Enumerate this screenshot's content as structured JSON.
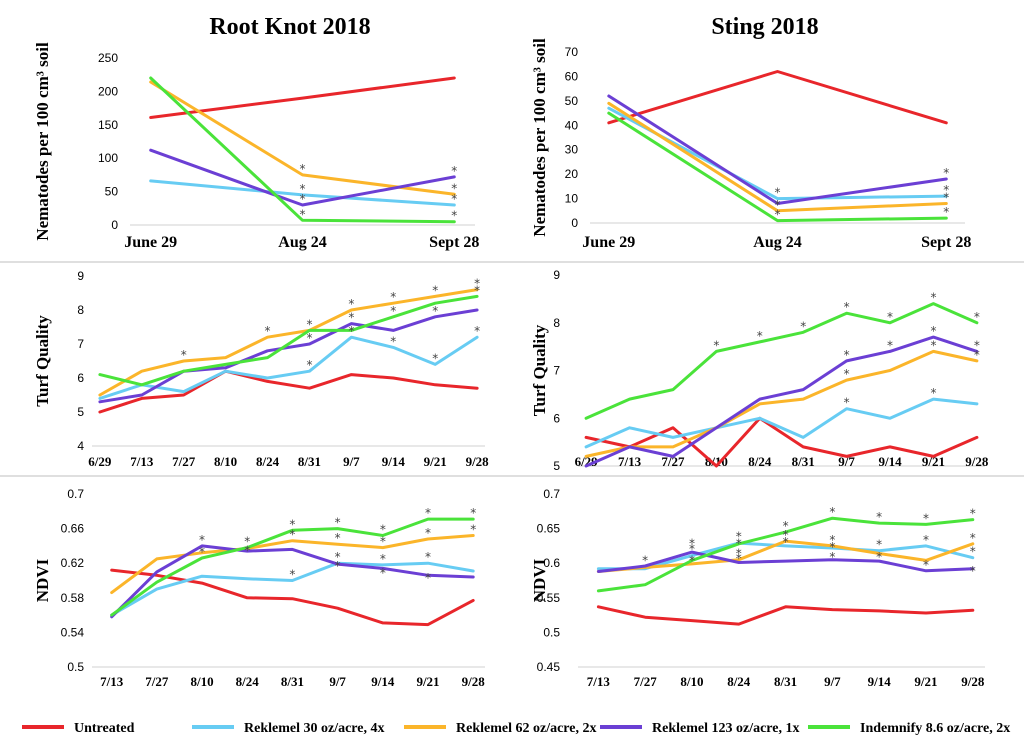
{
  "colors": {
    "Untreated": "#e8262b",
    "Reklemel 30 oz/acre, 4x": "#67ccf3",
    "Reklemel 62 oz/acre, 2x": "#fbb52a",
    "Reklemel 123 oz/acre, 1x": "#6b3fd4",
    "Indemnify 8.6 oz/acre, 2x": "#4ae33a"
  },
  "legend": [
    {
      "label": "Untreated"
    },
    {
      "label": "Reklemel 30 oz/acre, 4x"
    },
    {
      "label": "Reklemel 62 oz/acre, 2x"
    },
    {
      "label": "Reklemel 123 oz/acre, 1x"
    },
    {
      "label": "Indemnify 8.6 oz/acre, 2x"
    }
  ],
  "chart_data": [
    {
      "id": "rk_nema",
      "type": "line",
      "title": "Root Knot 2018",
      "ylabel": "Nematodes per 100 cm³ soil",
      "xlabel": "",
      "categories": [
        "June 29",
        "Aug 24",
        "Sept 28"
      ],
      "ylim": [
        0,
        250
      ],
      "yticks": [
        "0",
        "50",
        "100",
        "150",
        "200",
        "250"
      ],
      "yticksv": [
        0,
        50,
        100,
        150,
        200,
        250
      ],
      "grid": false,
      "series": [
        {
          "name": "Untreated",
          "values": [
            161,
            190,
            220
          ]
        },
        {
          "name": "Reklemel 30 oz/acre, 4x",
          "values": [
            66,
            45,
            30
          ]
        },
        {
          "name": "Reklemel 62 oz/acre, 2x",
          "values": [
            214,
            75,
            46
          ]
        },
        {
          "name": "Reklemel 123 oz/acre, 1x",
          "values": [
            112,
            30,
            72
          ]
        },
        {
          "name": "Indemnify 8.6 oz/acre, 2x",
          "values": [
            220,
            7,
            5
          ]
        }
      ],
      "annotations": [
        {
          "text": "*",
          "cat": 1,
          "y": 75
        },
        {
          "text": "*",
          "cat": 1,
          "y": 45
        },
        {
          "text": "*",
          "cat": 1,
          "y": 30
        },
        {
          "text": "*",
          "cat": 1,
          "y": 7
        },
        {
          "text": "*",
          "cat": 2,
          "y": 72
        },
        {
          "text": "*",
          "cat": 2,
          "y": 46
        },
        {
          "text": "*",
          "cat": 2,
          "y": 30
        },
        {
          "text": "*",
          "cat": 2,
          "y": 5
        }
      ]
    },
    {
      "id": "st_nema",
      "type": "line",
      "title": "Sting 2018",
      "ylabel": "Nematodes per 100 cm³ soil",
      "xlabel": "",
      "categories": [
        "June 29",
        "Aug 24",
        "Sept 28"
      ],
      "ylim": [
        0,
        70
      ],
      "yticks": [
        "0",
        "10",
        "20",
        "30",
        "40",
        "50",
        "60",
        "70"
      ],
      "yticksv": [
        0,
        10,
        20,
        30,
        40,
        50,
        60,
        70
      ],
      "grid": false,
      "series": [
        {
          "name": "Untreated",
          "values": [
            41,
            62,
            41
          ]
        },
        {
          "name": "Reklemel 30 oz/acre, 4x",
          "values": [
            47,
            10,
            11
          ]
        },
        {
          "name": "Reklemel 62 oz/acre, 2x",
          "values": [
            49,
            5,
            8
          ]
        },
        {
          "name": "Reklemel 123 oz/acre, 1x",
          "values": [
            52,
            8,
            18
          ]
        },
        {
          "name": "Indemnify 8.6 oz/acre, 2x",
          "values": [
            45,
            1,
            2
          ]
        }
      ],
      "annotations": [
        {
          "text": "*",
          "cat": 1,
          "y": 10
        },
        {
          "text": "*",
          "cat": 1,
          "y": 5
        },
        {
          "text": "*",
          "cat": 1,
          "y": 1
        },
        {
          "text": "*",
          "cat": 2,
          "y": 18
        },
        {
          "text": "*",
          "cat": 2,
          "y": 11
        },
        {
          "text": "*",
          "cat": 2,
          "y": 8
        },
        {
          "text": "*",
          "cat": 2,
          "y": 2
        }
      ]
    },
    {
      "id": "rk_turf",
      "type": "line",
      "title": "",
      "ylabel": "Turf Quality",
      "xlabel": "",
      "categories": [
        "6/29",
        "7/13",
        "7/27",
        "8/10",
        "8/24",
        "8/31",
        "9/7",
        "9/14",
        "9/21",
        "9/28"
      ],
      "ylim": [
        4,
        9
      ],
      "yticks": [
        "4",
        "5",
        "6",
        "7",
        "8",
        "9"
      ],
      "yticksv": [
        4,
        5,
        6,
        7,
        8,
        9
      ],
      "grid": false,
      "series": [
        {
          "name": "Untreated",
          "values": [
            5.0,
            5.4,
            5.5,
            6.2,
            5.9,
            5.7,
            6.1,
            6.0,
            5.8,
            5.7
          ]
        },
        {
          "name": "Reklemel 30 oz/acre, 4x",
          "values": [
            5.4,
            5.8,
            5.6,
            6.2,
            6.0,
            6.2,
            7.2,
            6.9,
            6.4,
            7.2
          ]
        },
        {
          "name": "Reklemel 62 oz/acre, 2x",
          "values": [
            5.5,
            6.2,
            6.5,
            6.6,
            7.2,
            7.4,
            8.0,
            8.2,
            8.4,
            8.6
          ]
        },
        {
          "name": "Reklemel 123 oz/acre, 1x",
          "values": [
            5.3,
            5.5,
            6.2,
            6.3,
            6.8,
            7.0,
            7.6,
            7.4,
            7.8,
            8.0
          ]
        },
        {
          "name": "Indemnify 8.6 oz/acre, 2x",
          "values": [
            6.1,
            5.8,
            6.2,
            6.4,
            6.6,
            7.4,
            7.4,
            7.8,
            8.2,
            8.4
          ]
        }
      ],
      "annotations": [
        {
          "text": "*",
          "cat": 2,
          "y": 6.5
        },
        {
          "text": "*",
          "cat": 4,
          "y": 7.2
        },
        {
          "text": "*",
          "cat": 5,
          "y": 7.4
        },
        {
          "text": "*",
          "cat": 5,
          "y": 7.0
        },
        {
          "text": "*",
          "cat": 5,
          "y": 6.2
        },
        {
          "text": "*",
          "cat": 6,
          "y": 8.0
        },
        {
          "text": "*",
          "cat": 6,
          "y": 7.6
        },
        {
          "text": "*",
          "cat": 6,
          "y": 7.2
        },
        {
          "text": "*",
          "cat": 7,
          "y": 8.2
        },
        {
          "text": "*",
          "cat": 7,
          "y": 7.8
        },
        {
          "text": "*",
          "cat": 7,
          "y": 6.9
        },
        {
          "text": "*",
          "cat": 8,
          "y": 8.4
        },
        {
          "text": "*",
          "cat": 8,
          "y": 7.8
        },
        {
          "text": "*",
          "cat": 8,
          "y": 6.4
        },
        {
          "text": "*",
          "cat": 9,
          "y": 8.6
        },
        {
          "text": "*",
          "cat": 9,
          "y": 8.4
        },
        {
          "text": "*",
          "cat": 9,
          "y": 7.2
        }
      ]
    },
    {
      "id": "st_turf",
      "type": "line",
      "title": "",
      "ylabel": "Turf Quality",
      "xlabel": "",
      "categories": [
        "6/29",
        "7/13",
        "7/27",
        "8/10",
        "8/24",
        "8/31",
        "9/7",
        "9/14",
        "9/21",
        "9/28"
      ],
      "ylim": [
        5,
        9
      ],
      "yticks": [
        "5",
        "6",
        "7",
        "8",
        "9"
      ],
      "yticksv": [
        5,
        6,
        7,
        8,
        9
      ],
      "grid": false,
      "series": [
        {
          "name": "Untreated",
          "values": [
            5.6,
            5.4,
            5.8,
            5.0,
            6.0,
            5.4,
            5.2,
            5.4,
            5.2,
            5.6
          ]
        },
        {
          "name": "Reklemel 30 oz/acre, 4x",
          "values": [
            5.4,
            5.8,
            5.6,
            5.8,
            6.0,
            5.6,
            6.2,
            6.0,
            6.4,
            6.3
          ]
        },
        {
          "name": "Reklemel 62 oz/acre, 2x",
          "values": [
            5.2,
            5.4,
            5.4,
            5.8,
            6.3,
            6.4,
            6.8,
            7.0,
            7.4,
            7.2
          ]
        },
        {
          "name": "Reklemel 123 oz/acre, 1x",
          "values": [
            5.0,
            5.4,
            5.2,
            5.8,
            6.4,
            6.6,
            7.2,
            7.4,
            7.7,
            7.4
          ]
        },
        {
          "name": "Indemnify 8.6 oz/acre, 2x",
          "values": [
            6.0,
            6.4,
            6.6,
            7.4,
            7.6,
            7.8,
            8.2,
            8.0,
            8.4,
            8.0
          ]
        }
      ],
      "annotations": [
        {
          "text": "*",
          "cat": 3,
          "y": 7.4
        },
        {
          "text": "*",
          "cat": 4,
          "y": 7.6
        },
        {
          "text": "*",
          "cat": 5,
          "y": 7.8
        },
        {
          "text": "*",
          "cat": 6,
          "y": 8.2
        },
        {
          "text": "*",
          "cat": 6,
          "y": 7.2
        },
        {
          "text": "*",
          "cat": 6,
          "y": 6.8
        },
        {
          "text": "*",
          "cat": 6,
          "y": 6.2
        },
        {
          "text": "*",
          "cat": 7,
          "y": 8.0
        },
        {
          "text": "*",
          "cat": 7,
          "y": 7.4
        },
        {
          "text": "*",
          "cat": 8,
          "y": 8.4
        },
        {
          "text": "*",
          "cat": 8,
          "y": 7.7
        },
        {
          "text": "*",
          "cat": 8,
          "y": 7.4
        },
        {
          "text": "*",
          "cat": 8,
          "y": 6.4
        },
        {
          "text": "*",
          "cat": 9,
          "y": 8.0
        },
        {
          "text": "*",
          "cat": 9,
          "y": 7.4
        },
        {
          "text": "*",
          "cat": 9,
          "y": 7.2
        }
      ]
    },
    {
      "id": "rk_ndvi",
      "type": "line",
      "title": "",
      "ylabel": "NDVI",
      "xlabel": "",
      "categories": [
        "7/13",
        "7/27",
        "8/10",
        "8/24",
        "8/31",
        "9/7",
        "9/14",
        "9/21",
        "9/28"
      ],
      "ylim": [
        0.5,
        0.7
      ],
      "yticks": [
        "0.5",
        "0.54",
        "0.58",
        "0.62",
        "0.66",
        "0.7"
      ],
      "yticksv": [
        0.5,
        0.54,
        0.58,
        0.62,
        0.66,
        0.7
      ],
      "grid": false,
      "series": [
        {
          "name": "Untreated",
          "values": [
            0.612,
            0.606,
            0.597,
            0.58,
            0.579,
            0.568,
            0.551,
            0.549,
            0.577
          ]
        },
        {
          "name": "Reklemel 30 oz/acre, 4x",
          "values": [
            0.56,
            0.59,
            0.605,
            0.602,
            0.6,
            0.62,
            0.618,
            0.62,
            0.611
          ]
        },
        {
          "name": "Reklemel 62 oz/acre, 2x",
          "values": [
            0.586,
            0.625,
            0.632,
            0.637,
            0.646,
            0.642,
            0.638,
            0.648,
            0.652
          ]
        },
        {
          "name": "Reklemel 123 oz/acre, 1x",
          "values": [
            0.558,
            0.61,
            0.64,
            0.634,
            0.636,
            0.619,
            0.614,
            0.606,
            0.604
          ]
        },
        {
          "name": "Indemnify 8.6 oz/acre, 2x",
          "values": [
            0.56,
            0.598,
            0.626,
            0.638,
            0.658,
            0.66,
            0.652,
            0.671,
            0.671
          ]
        }
      ],
      "annotations": [
        {
          "text": "*",
          "cat": 2,
          "y": 0.64
        },
        {
          "text": "*",
          "cat": 2,
          "y": 0.626
        },
        {
          "text": "*",
          "cat": 3,
          "y": 0.638
        },
        {
          "text": "*",
          "cat": 3,
          "y": 0.628
        },
        {
          "text": "*",
          "cat": 4,
          "y": 0.658
        },
        {
          "text": "*",
          "cat": 4,
          "y": 0.646
        },
        {
          "text": "*",
          "cat": 4,
          "y": 0.6
        },
        {
          "text": "*",
          "cat": 5,
          "y": 0.66
        },
        {
          "text": "*",
          "cat": 5,
          "y": 0.642
        },
        {
          "text": "*",
          "cat": 5,
          "y": 0.62
        },
        {
          "text": "*",
          "cat": 5,
          "y": 0.61
        },
        {
          "text": "*",
          "cat": 6,
          "y": 0.652
        },
        {
          "text": "*",
          "cat": 6,
          "y": 0.638
        },
        {
          "text": "*",
          "cat": 6,
          "y": 0.618
        },
        {
          "text": "*",
          "cat": 6,
          "y": 0.602
        },
        {
          "text": "*",
          "cat": 7,
          "y": 0.671
        },
        {
          "text": "*",
          "cat": 7,
          "y": 0.648
        },
        {
          "text": "*",
          "cat": 7,
          "y": 0.62
        },
        {
          "text": "*",
          "cat": 7,
          "y": 0.596
        },
        {
          "text": "*",
          "cat": 8,
          "y": 0.671
        },
        {
          "text": "*",
          "cat": 8,
          "y": 0.652
        }
      ]
    },
    {
      "id": "st_ndvi",
      "type": "line",
      "title": "",
      "ylabel": "NDVI",
      "xlabel": "",
      "categories": [
        "7/13",
        "7/27",
        "8/10",
        "8/24",
        "8/31",
        "9/7",
        "9/14",
        "9/21",
        "9/28"
      ],
      "ylim": [
        0.45,
        0.7
      ],
      "yticks": [
        "0.45",
        "0.5",
        "0.55",
        "0.6",
        "0.65",
        "0.7"
      ],
      "yticksv": [
        0.45,
        0.5,
        0.55,
        0.6,
        0.65,
        0.7
      ],
      "grid": false,
      "series": [
        {
          "name": "Untreated",
          "values": [
            0.537,
            0.522,
            0.517,
            0.512,
            0.537,
            0.533,
            0.531,
            0.528,
            0.532
          ]
        },
        {
          "name": "Reklemel 30 oz/acre, 4x",
          "values": [
            0.592,
            0.592,
            0.611,
            0.629,
            0.625,
            0.622,
            0.618,
            0.625,
            0.608
          ]
        },
        {
          "name": "Reklemel 62 oz/acre, 2x",
          "values": [
            0.588,
            0.594,
            0.599,
            0.605,
            0.632,
            0.625,
            0.614,
            0.604,
            0.628
          ]
        },
        {
          "name": "Reklemel 123 oz/acre, 1x",
          "values": [
            0.588,
            0.596,
            0.616,
            0.601,
            0.603,
            0.605,
            0.603,
            0.589,
            0.592
          ]
        },
        {
          "name": "Indemnify 8.6 oz/acre, 2x",
          "values": [
            0.56,
            0.569,
            0.604,
            0.628,
            0.645,
            0.665,
            0.658,
            0.656,
            0.663
          ]
        }
      ],
      "annotations": [
        {
          "text": "*",
          "cat": 1,
          "y": 0.595
        },
        {
          "text": "*",
          "cat": 2,
          "y": 0.62
        },
        {
          "text": "*",
          "cat": 2,
          "y": 0.612
        },
        {
          "text": "*",
          "cat": 2,
          "y": 0.595
        },
        {
          "text": "*",
          "cat": 3,
          "y": 0.63
        },
        {
          "text": "*",
          "cat": 3,
          "y": 0.62
        },
        {
          "text": "*",
          "cat": 3,
          "y": 0.605
        },
        {
          "text": "*",
          "cat": 3,
          "y": 0.598
        },
        {
          "text": "*",
          "cat": 4,
          "y": 0.645
        },
        {
          "text": "*",
          "cat": 4,
          "y": 0.632
        },
        {
          "text": "*",
          "cat": 4,
          "y": 0.622
        },
        {
          "text": "*",
          "cat": 5,
          "y": 0.665
        },
        {
          "text": "*",
          "cat": 5,
          "y": 0.625
        },
        {
          "text": "*",
          "cat": 5,
          "y": 0.615
        },
        {
          "text": "*",
          "cat": 5,
          "y": 0.6
        },
        {
          "text": "*",
          "cat": 6,
          "y": 0.658
        },
        {
          "text": "*",
          "cat": 6,
          "y": 0.618
        },
        {
          "text": "*",
          "cat": 6,
          "y": 0.6
        },
        {
          "text": "*",
          "cat": 7,
          "y": 0.656
        },
        {
          "text": "*",
          "cat": 7,
          "y": 0.625
        },
        {
          "text": "*",
          "cat": 7,
          "y": 0.589
        },
        {
          "text": "*",
          "cat": 8,
          "y": 0.663
        },
        {
          "text": "*",
          "cat": 8,
          "y": 0.628
        },
        {
          "text": "*",
          "cat": 8,
          "y": 0.608
        },
        {
          "text": "*",
          "cat": 8,
          "y": 0.58
        }
      ]
    }
  ]
}
